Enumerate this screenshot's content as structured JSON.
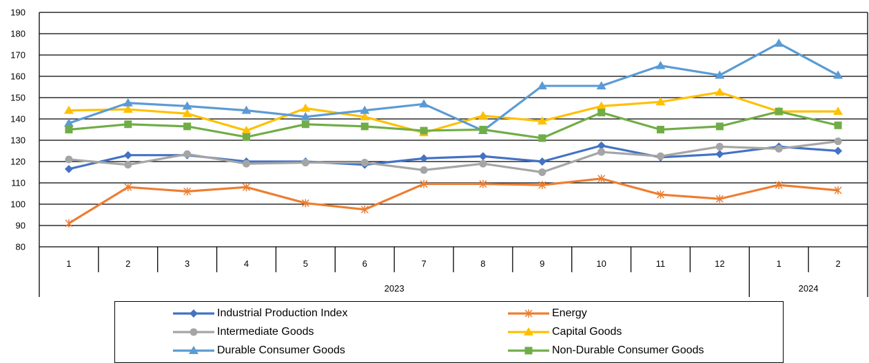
{
  "chart_data": {
    "type": "line",
    "x": [
      "1",
      "2",
      "3",
      "4",
      "5",
      "6",
      "7",
      "8",
      "9",
      "10",
      "11",
      "12",
      "1",
      "2"
    ],
    "year_groups": [
      {
        "label": "2023",
        "start": 0,
        "end": 11
      },
      {
        "label": "2024",
        "start": 12,
        "end": 13
      }
    ],
    "ylim": [
      80,
      190
    ],
    "yticks": [
      80,
      90,
      100,
      110,
      120,
      130,
      140,
      150,
      160,
      170,
      180,
      190
    ],
    "grid": true,
    "legend_position": "bottom",
    "series": [
      {
        "name": "Industrial Production Index",
        "color": "#4472C4",
        "marker": "diamond",
        "values": [
          116.5,
          123,
          123,
          120,
          120,
          118.5,
          121.5,
          122.5,
          120,
          127.5,
          122,
          123.5,
          127,
          125
        ]
      },
      {
        "name": "Energy",
        "color": "#ED7D31",
        "marker": "star",
        "values": [
          91,
          108,
          106,
          108,
          100.5,
          97.5,
          109.5,
          109.5,
          109,
          112,
          104.5,
          102.5,
          109,
          106.5
        ]
      },
      {
        "name": "Intermediate Goods",
        "color": "#A5A5A5",
        "marker": "circle",
        "values": [
          121,
          118.5,
          123.5,
          119,
          119.5,
          119.5,
          116,
          119,
          115,
          124.5,
          122.5,
          127,
          126,
          129.5
        ]
      },
      {
        "name": "Capital Goods",
        "color": "#FFC000",
        "marker": "triangle",
        "values": [
          144,
          144.5,
          142.5,
          134.5,
          145,
          141,
          133.5,
          141.5,
          139,
          146,
          148,
          152.5,
          143.5,
          143.5
        ]
      },
      {
        "name": "Durable Consumer Goods",
        "color": "#5B9BD5",
        "marker": "triangle",
        "values": [
          138,
          147.5,
          146,
          144,
          141,
          144,
          147,
          134.5,
          155.5,
          155.5,
          165,
          160.5,
          175.5,
          160.5
        ]
      },
      {
        "name": "Non-Durable Consumer Goods",
        "color": "#70AD47",
        "marker": "square",
        "values": [
          135,
          137.5,
          136.5,
          131.5,
          137.5,
          136.5,
          134.5,
          135,
          131,
          143,
          135,
          136.5,
          143.5,
          137
        ]
      }
    ]
  }
}
